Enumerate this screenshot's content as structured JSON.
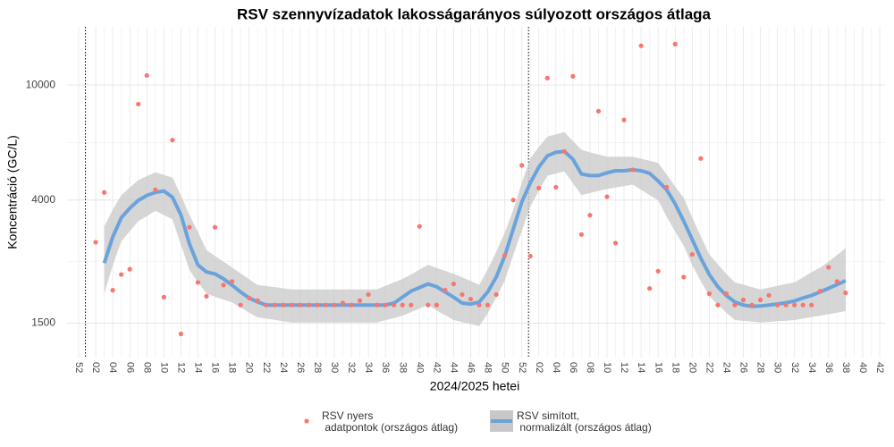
{
  "chart_data": {
    "type": "line",
    "title": "RSV szennyvízadatok lakosságarányos súlyozott országos átlaga",
    "x_label": "2024/2025 hetei",
    "y_label": "Koncentráció (GC/L)",
    "log_scale": true,
    "grid": true,
    "legend_position": "bottom",
    "ylim": [
      1140,
      15900
    ],
    "yticks": [
      1500,
      4000,
      10000
    ],
    "categories": [
      "52",
      null,
      "02",
      null,
      "04",
      null,
      "06",
      null,
      "08",
      null,
      "10",
      null,
      "12",
      null,
      "14",
      null,
      "16",
      null,
      "18",
      null,
      "20",
      null,
      "22",
      null,
      "24",
      null,
      "26",
      null,
      "28",
      null,
      "30",
      null,
      "32",
      null,
      "34",
      null,
      "36",
      null,
      "38",
      null,
      "40",
      null,
      "42",
      null,
      "44",
      null,
      "46",
      null,
      "48",
      null,
      "50",
      null,
      "52",
      null,
      "02",
      null,
      "04",
      null,
      "06",
      null,
      "08",
      null,
      "10",
      null,
      "12",
      null,
      "14",
      null,
      "16",
      null,
      "18",
      null,
      "20",
      null,
      "22",
      null,
      "24",
      null,
      "26",
      null,
      "28",
      null,
      "30",
      null,
      "32",
      null,
      "34",
      null,
      "36",
      null,
      "38",
      null,
      "40",
      null,
      "42"
    ],
    "series": [
      {
        "name": "RSV nyers\n adatpontok (országos átlag)",
        "type": "scatter",
        "color": "#f8766d",
        "values": [
          null,
          null,
          2858,
          4250,
          1950,
          2210,
          2305,
          8590,
          10790,
          4340,
          1845,
          6450,
          1377,
          3220,
          2075,
          1858,
          3220,
          2032,
          2090,
          1733,
          1833,
          1795,
          1733,
          1733,
          1733,
          1733,
          1733,
          1733,
          1733,
          1733,
          1733,
          1760,
          1733,
          1795,
          1884,
          1733,
          1733,
          1733,
          1733,
          1733,
          3243,
          1733,
          1733,
          1950,
          2050,
          1884,
          1817,
          1733,
          1733,
          1884,
          2575,
          4000,
          5272,
          2559,
          4400,
          10570,
          4430,
          5890,
          10720,
          3040,
          3545,
          8120,
          4105,
          2840,
          7570,
          5090,
          13670,
          1977,
          2270,
          4430,
          13850,
          2165,
          2594,
          5570,
          1897,
          1733,
          1897,
          1733,
          1805,
          1733,
          1805,
          1873,
          1733,
          1733,
          1733,
          1733,
          1733,
          1935,
          2340,
          2090,
          1910,
          null,
          null,
          null,
          null
        ]
      },
      {
        "name": "RSV simított,\n normalizált (országos átlag)",
        "type": "line",
        "color": "#6aa3dc",
        "band_color": "#c8c8c8",
        "values": [
          null,
          null,
          null,
          2420,
          2980,
          3475,
          3750,
          3990,
          4150,
          4250,
          4300,
          4090,
          3550,
          2820,
          2385,
          2255,
          2220,
          2135,
          2030,
          1923,
          1833,
          1775,
          1733,
          1733,
          1733,
          1733,
          1733,
          1733,
          1733,
          1733,
          1733,
          1733,
          1733,
          1733,
          1733,
          1733,
          1733,
          1760,
          1845,
          1935,
          1992,
          2050,
          2005,
          1923,
          1845,
          1760,
          1747,
          1775,
          1923,
          2165,
          2560,
          3175,
          3940,
          4590,
          5200,
          5690,
          5850,
          5890,
          5535,
          4920,
          4860,
          4860,
          4970,
          5050,
          5050,
          5090,
          5050,
          4950,
          4655,
          4340,
          3880,
          3380,
          2920,
          2520,
          2210,
          2005,
          1870,
          1775,
          1733,
          1715,
          1720,
          1733,
          1747,
          1765,
          1790,
          1833,
          1870,
          1923,
          1980,
          2040,
          2105,
          null,
          null,
          null,
          null
        ],
        "lower": [
          null,
          null,
          null,
          1897,
          2380,
          2877,
          3120,
          3381,
          3520,
          3673,
          3550,
          3428,
          2800,
          2291,
          2080,
          1897,
          1850,
          1810,
          1770,
          1700,
          1630,
          1571,
          1555,
          1540,
          1522,
          1507,
          1507,
          1507,
          1507,
          1507,
          1507,
          1507,
          1507,
          1507,
          1507,
          1507,
          1535,
          1563,
          1592,
          1638,
          1685,
          1733,
          1660,
          1598,
          1538,
          1513,
          1490,
          1466,
          1620,
          1840,
          2104,
          2580,
          3130,
          3802,
          4300,
          4853,
          4940,
          5023,
          4570,
          4159,
          4230,
          4300,
          4365,
          4420,
          4470,
          4526,
          4340,
          4160,
          3990,
          3500,
          3110,
          2780,
          2380,
          2100,
          1858,
          1740,
          1630,
          1538,
          1528,
          1518,
          1507,
          1515,
          1523,
          1530,
          1538,
          1555,
          1573,
          1592,
          1610,
          1630,
          1652,
          null,
          null,
          null,
          null
        ],
        "upper": [
          null,
          null,
          null,
          3243,
          3700,
          4159,
          4420,
          4688,
          4840,
          4989,
          4890,
          4786,
          4150,
          3548,
          3100,
          2685,
          2560,
          2450,
          2338,
          2230,
          2130,
          2032,
          2015,
          2000,
          1980,
          1963,
          1963,
          1963,
          1963,
          1963,
          1963,
          1963,
          1963,
          1963,
          1963,
          1963,
          2020,
          2075,
          2133,
          2210,
          2300,
          2386,
          2330,
          2275,
          2223,
          2160,
          2100,
          2032,
          2300,
          2650,
          3083,
          3700,
          4600,
          5572,
          6100,
          6637,
          6750,
          6871,
          6400,
          5970,
          5850,
          5750,
          5649,
          5649,
          5649,
          5649,
          5560,
          5470,
          5383,
          4900,
          4450,
          4074,
          3480,
          3000,
          2594,
          2400,
          2220,
          2075,
          2040,
          2000,
          1963,
          1990,
          2020,
          2050,
          2075,
          2160,
          2250,
          2338,
          2450,
          2580,
          2723,
          null,
          null,
          null,
          null
        ]
      }
    ]
  }
}
